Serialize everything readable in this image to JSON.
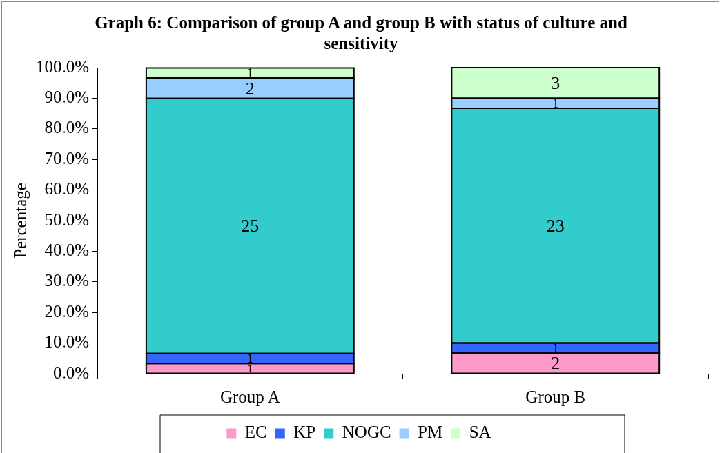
{
  "chart_data": {
    "type": "bar",
    "stacked": true,
    "title": "Graph 6: Comparison of group A and group B with status of culture and sensitivity",
    "ylabel": "Percentage",
    "categories": [
      "Group A",
      "Group B"
    ],
    "series": [
      {
        "name": "EC",
        "color": "#ff99cc",
        "values": [
          3.3,
          6.7
        ]
      },
      {
        "name": "KP",
        "color": "#3366ff",
        "values": [
          3.3,
          3.3
        ]
      },
      {
        "name": "NOGC",
        "color": "#33cccc",
        "values": [
          83.3,
          76.7
        ]
      },
      {
        "name": "PM",
        "color": "#99ccff",
        "values": [
          6.7,
          3.3
        ]
      },
      {
        "name": "SA",
        "color": "#ccffcc",
        "values": [
          3.3,
          10
        ]
      }
    ],
    "annotations": [
      "1",
      "1",
      "25",
      "2",
      "1",
      "2",
      "1",
      "23",
      "1",
      "3"
    ],
    "ylim": [
      0,
      100
    ],
    "yticks": [
      {
        "value": 0,
        "label": "0.0%"
      },
      {
        "value": 10,
        "label": "10.0%"
      },
      {
        "value": 20,
        "label": "20.0%"
      },
      {
        "value": 30,
        "label": "30.0%"
      },
      {
        "value": 40,
        "label": "40.0%"
      },
      {
        "value": 50,
        "label": "50.0%"
      },
      {
        "value": 60,
        "label": "60.0%"
      },
      {
        "value": 70,
        "label": "70.0%"
      },
      {
        "value": 80,
        "label": "80.0%"
      },
      {
        "value": 90,
        "label": "90.0%"
      },
      {
        "value": 100,
        "label": "100.0%"
      }
    ],
    "grid": false,
    "legend": "bottom"
  }
}
